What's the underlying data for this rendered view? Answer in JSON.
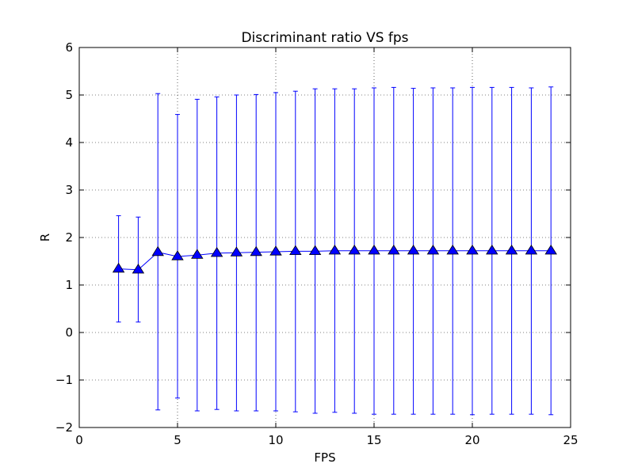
{
  "chart_data": {
    "type": "line",
    "title": "Discriminant ratio VS fps",
    "xlabel": "FPS",
    "ylabel": "R",
    "xlim": [
      0,
      25
    ],
    "ylim": [
      -2,
      6
    ],
    "xticks": [
      0,
      5,
      10,
      15,
      20,
      25
    ],
    "yticks": [
      -2,
      -1,
      0,
      1,
      2,
      3,
      4,
      5,
      6
    ],
    "xtick_labels": [
      "0",
      "5",
      "10",
      "15",
      "20",
      "25"
    ],
    "ytick_labels": [
      "−2",
      "−1",
      "0",
      "1",
      "2",
      "3",
      "4",
      "5",
      "6"
    ],
    "grid": true,
    "color": "#0000ff",
    "marker": "triangle",
    "series": [
      {
        "x": [
          2,
          3,
          4,
          5,
          6,
          7,
          8,
          9,
          10,
          11,
          12,
          13,
          14,
          15,
          16,
          17,
          18,
          19,
          20,
          21,
          22,
          23,
          24
        ],
        "y": [
          1.34,
          1.32,
          1.69,
          1.6,
          1.63,
          1.67,
          1.68,
          1.69,
          1.7,
          1.71,
          1.71,
          1.72,
          1.72,
          1.72,
          1.72,
          1.72,
          1.72,
          1.72,
          1.72,
          1.72,
          1.72,
          1.72,
          1.72
        ],
        "err_low": [
          0.22,
          0.22,
          -1.63,
          -1.38,
          -1.65,
          -1.62,
          -1.65,
          -1.65,
          -1.65,
          -1.67,
          -1.7,
          -1.68,
          -1.7,
          -1.72,
          -1.72,
          -1.72,
          -1.72,
          -1.72,
          -1.73,
          -1.72,
          -1.72,
          -1.72,
          -1.73
        ],
        "err_high": [
          2.46,
          2.43,
          5.03,
          4.59,
          4.91,
          4.96,
          5.0,
          5.01,
          5.05,
          5.08,
          5.13,
          5.13,
          5.13,
          5.15,
          5.16,
          5.14,
          5.15,
          5.15,
          5.16,
          5.16,
          5.16,
          5.15,
          5.17
        ]
      }
    ]
  }
}
